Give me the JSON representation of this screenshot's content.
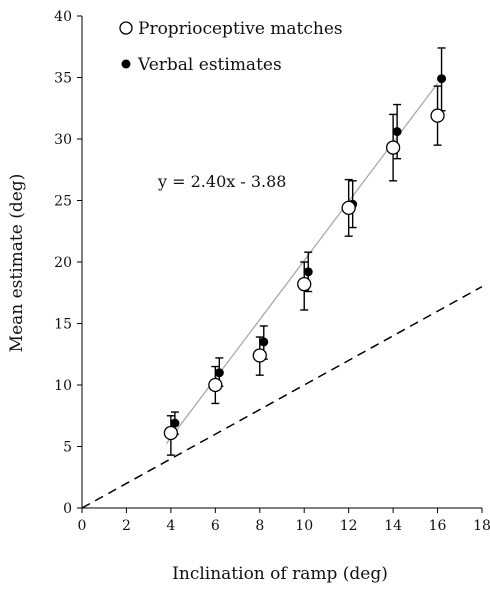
{
  "chart_data": {
    "type": "scatter",
    "xlabel": "Inclination of ramp (deg)",
    "ylabel": "Mean estimate (deg)",
    "xlim": [
      0,
      18
    ],
    "ylim": [
      0,
      40
    ],
    "xticks": [
      0,
      2,
      4,
      6,
      8,
      10,
      12,
      14,
      16,
      18
    ],
    "yticks": [
      0,
      5,
      10,
      15,
      20,
      25,
      30,
      35,
      40
    ],
    "grid": false,
    "legend_position": "top-left",
    "series": [
      {
        "name": "Proprioceptive matches",
        "marker": "open-circle",
        "x": [
          4,
          6,
          8,
          10,
          12,
          14,
          16
        ],
        "y": [
          6.1,
          10.0,
          12.4,
          18.2,
          24.4,
          29.3,
          31.9
        ],
        "err_low": [
          1.8,
          1.5,
          1.6,
          2.1,
          2.3,
          2.7,
          2.4
        ],
        "err_high": [
          1.4,
          1.5,
          1.5,
          1.8,
          2.3,
          2.7,
          2.4
        ]
      },
      {
        "name": "Verbal estimates",
        "marker": "filled-circle",
        "x": [
          4,
          6,
          8,
          10,
          12,
          14,
          16
        ],
        "y": [
          6.9,
          11.0,
          13.5,
          19.2,
          24.7,
          30.6,
          34.9
        ],
        "err_low": [
          0.9,
          1.1,
          1.4,
          1.6,
          1.9,
          2.2,
          2.6
        ],
        "err_high": [
          0.9,
          1.2,
          1.3,
          1.6,
          1.9,
          2.2,
          2.5
        ]
      }
    ],
    "fit_line": {
      "x": [
        3.8,
        16
      ],
      "y": [
        5.24,
        34.52
      ]
    },
    "identity_line": {
      "x": [
        0,
        18
      ],
      "y": [
        0,
        18
      ]
    },
    "annotation": "y = 2.40x - 3.88",
    "colors": {
      "fill_open": "#ffffff",
      "fill_closed": "#000000",
      "fit": "#aaaaaa",
      "axis": "#000000"
    }
  }
}
